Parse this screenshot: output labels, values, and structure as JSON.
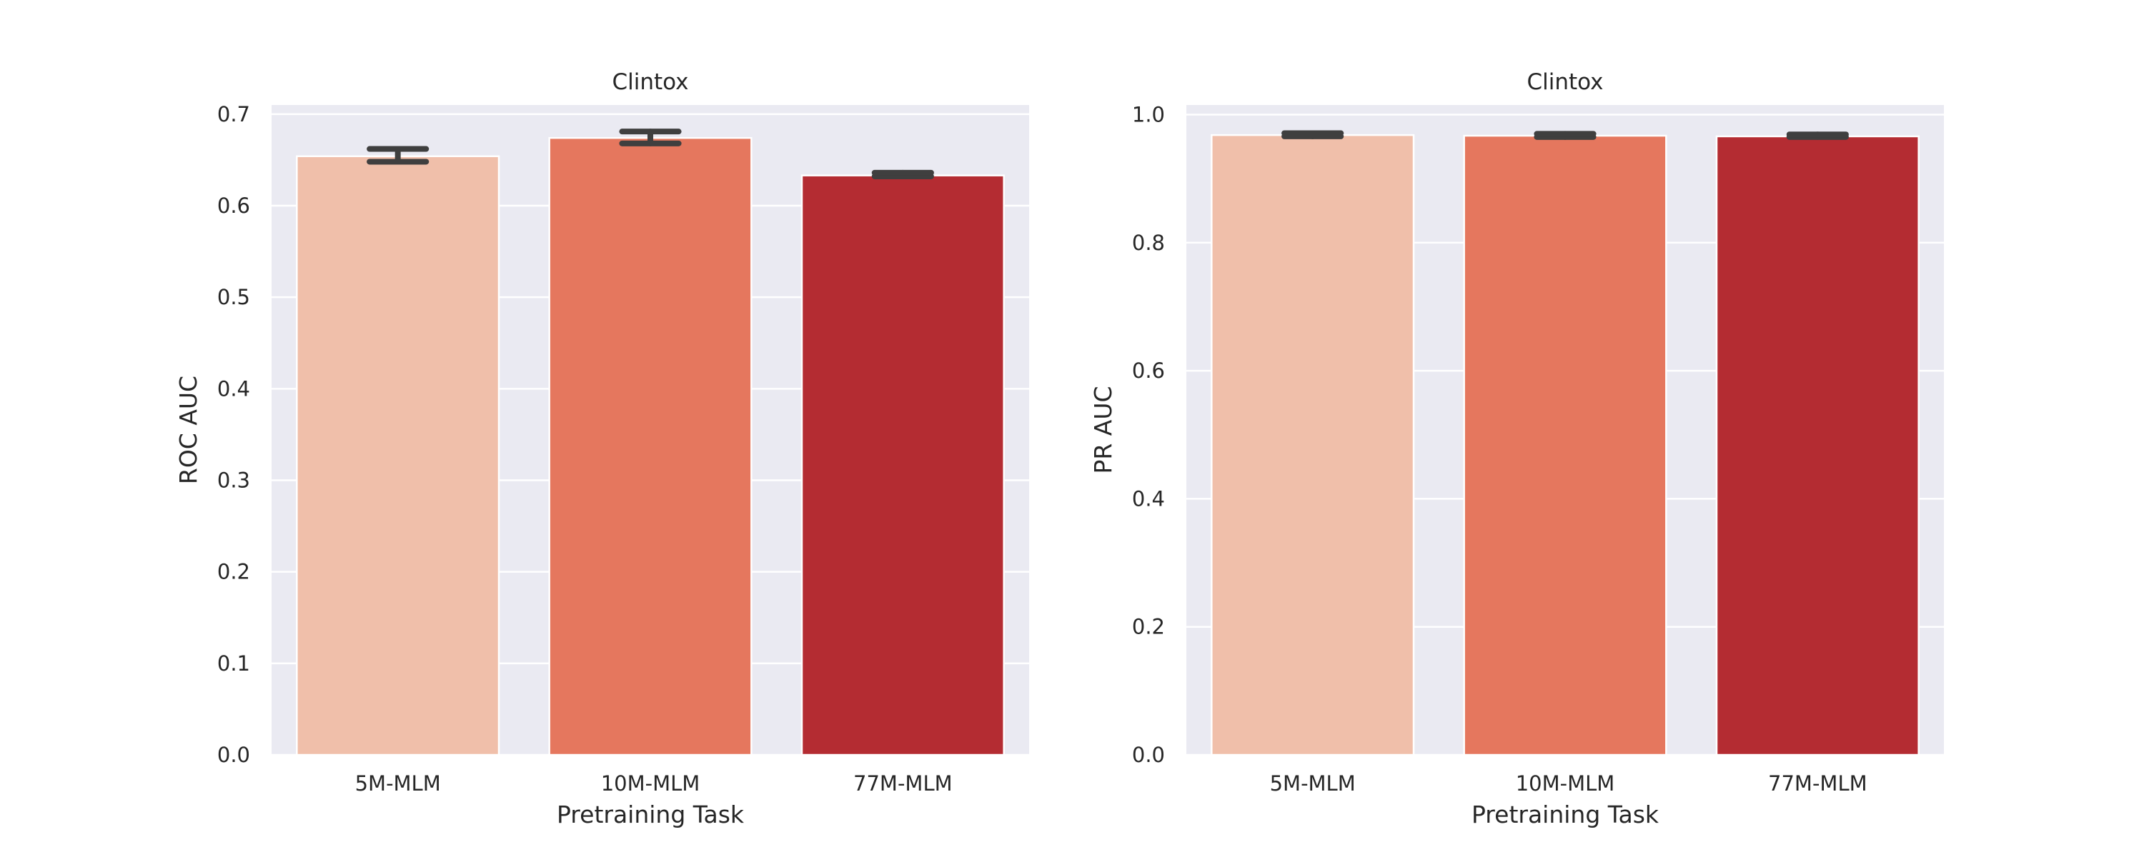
{
  "chart_data": [
    {
      "type": "bar",
      "title": "Clintox",
      "xlabel": "Pretraining Task",
      "ylabel": "ROC AUC",
      "categories": [
        "5M-MLM",
        "10M-MLM",
        "77M-MLM"
      ],
      "values": [
        0.654,
        0.674,
        0.633
      ],
      "error_low": [
        0.648,
        0.668,
        0.632
      ],
      "error_high": [
        0.662,
        0.681,
        0.636
      ],
      "ylim": [
        0,
        0.71
      ],
      "yticks": [
        "0.0",
        "0.1",
        "0.2",
        "0.3",
        "0.4",
        "0.5",
        "0.6",
        "0.7"
      ],
      "grid": true,
      "colors": [
        "#f0bfaa",
        "#e5775e",
        "#b42c32"
      ]
    },
    {
      "type": "bar",
      "title": "Clintox",
      "xlabel": "Pretraining Task",
      "ylabel": "PR AUC",
      "categories": [
        "5M-MLM",
        "10M-MLM",
        "77M-MLM"
      ],
      "values": [
        0.968,
        0.967,
        0.966
      ],
      "error_low": [
        0.966,
        0.965,
        0.965
      ],
      "error_high": [
        0.971,
        0.97,
        0.969
      ],
      "ylim": [
        0,
        1.015
      ],
      "yticks": [
        "0.0",
        "0.2",
        "0.4",
        "0.6",
        "0.8",
        "1.0"
      ],
      "grid": true,
      "colors": [
        "#f0bfaa",
        "#e5775e",
        "#b42c32"
      ]
    }
  ]
}
